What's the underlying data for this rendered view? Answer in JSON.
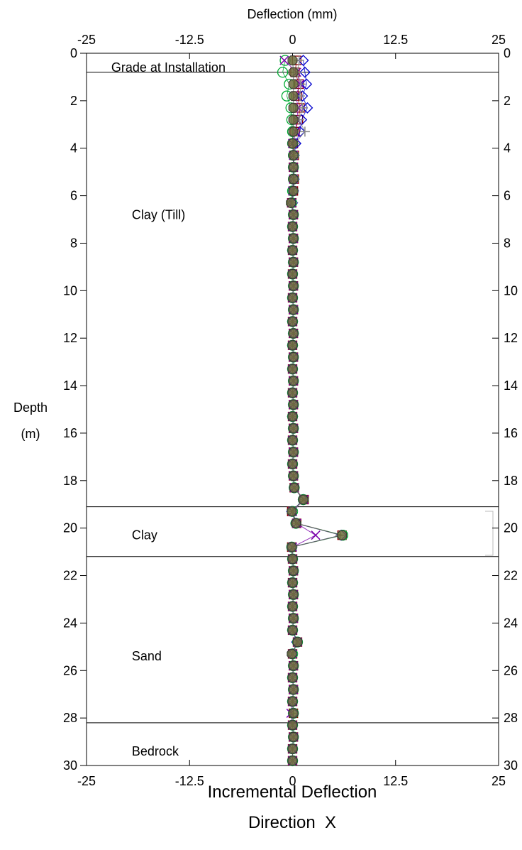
{
  "chart_data": {
    "type": "scatter",
    "title_top": "Deflection (mm)",
    "xlabel": "Incremental Deflection",
    "xlabel2": "Direction  X",
    "ylabel_line1": "Depth",
    "ylabel_line2": "(m)",
    "xlim": [
      -25,
      25
    ],
    "ylim": [
      0,
      30
    ],
    "y_inverted": true,
    "x_ticks": [
      "-25",
      "-12.5",
      "0",
      "12.5",
      "25"
    ],
    "x_tick_values": [
      -25,
      -12.5,
      0,
      12.5,
      25
    ],
    "y_ticks": [
      "0",
      "2",
      "4",
      "6",
      "8",
      "10",
      "12",
      "14",
      "16",
      "18",
      "20",
      "22",
      "24",
      "26",
      "28",
      "30"
    ],
    "y_tick_values": [
      0,
      2,
      4,
      6,
      8,
      10,
      12,
      14,
      16,
      18,
      20,
      22,
      24,
      26,
      28,
      30
    ],
    "grid": false,
    "layer_boundaries": [
      0.8,
      19.1,
      21.2,
      28.2
    ],
    "layer_labels": [
      {
        "text": "Grade at Installation",
        "x": -22,
        "y": 0.6
      },
      {
        "text": "Clay (Till)",
        "x": -19.5,
        "y": 6.8
      },
      {
        "text": "Clay",
        "x": -19.5,
        "y": 20.3
      },
      {
        "text": "Sand",
        "x": -19.5,
        "y": 25.4
      },
      {
        "text": "Bedrock",
        "x": -19.5,
        "y": 29.4
      }
    ],
    "depths": [
      0.3,
      0.8,
      1.3,
      1.8,
      2.3,
      2.8,
      3.3,
      3.8,
      4.3,
      4.8,
      5.3,
      5.8,
      6.3,
      6.8,
      7.3,
      7.8,
      8.3,
      8.8,
      9.3,
      9.8,
      10.3,
      10.8,
      11.3,
      11.8,
      12.3,
      12.8,
      13.3,
      13.8,
      14.3,
      14.8,
      15.3,
      15.8,
      16.3,
      16.8,
      17.3,
      17.8,
      18.3,
      18.8,
      19.3,
      19.8,
      20.3,
      20.8,
      21.3,
      21.8,
      22.3,
      22.8,
      23.3,
      23.8,
      24.3,
      24.8,
      25.3,
      25.8,
      26.3,
      26.8,
      27.3,
      27.8,
      28.3,
      28.8,
      29.3,
      29.8
    ],
    "series": [
      {
        "color": "#8b0000",
        "marker": "square",
        "values": [
          0.5,
          0.3,
          0.8,
          0.6,
          0.9,
          0.7,
          0.3,
          0.1,
          0.2,
          0.1,
          0.2,
          0.1,
          -0.1,
          0.1,
          0.0,
          0.1,
          0.0,
          0.1,
          0.0,
          0.1,
          0.0,
          0.1,
          0.0,
          0.1,
          0.0,
          0.1,
          0.0,
          0.1,
          0.0,
          0.1,
          0.0,
          0.1,
          0.0,
          0.1,
          0.0,
          0.1,
          0.2,
          1.4,
          -0.1,
          0.5,
          6.0,
          -0.1,
          0.0,
          0.1,
          0.0,
          0.1,
          0.0,
          0.1,
          0.0,
          0.6,
          0.0,
          0.1,
          0.0,
          0.1,
          0.0,
          0.1,
          0.0,
          0.1,
          0.0,
          0.0
        ]
      },
      {
        "color": "#0000cc",
        "marker": "diamond",
        "values": [
          1.3,
          1.5,
          1.7,
          1.2,
          1.8,
          1.1,
          0.9,
          0.4,
          0.2,
          0.1,
          0.2,
          0.1,
          0.0,
          0.1,
          0.0,
          0.1,
          0.0,
          0.1,
          0.0,
          0.1,
          0.0,
          0.1,
          0.0,
          0.1,
          0.0,
          0.1,
          0.0,
          0.1,
          0.0,
          0.1,
          0.0,
          0.1,
          0.0,
          0.1,
          0.0,
          0.1,
          0.2,
          1.3,
          -0.1,
          0.4,
          5.9,
          -0.1,
          0.0,
          0.1,
          0.0,
          0.1,
          0.0,
          0.1,
          0.0,
          0.5,
          0.0,
          0.1,
          0.0,
          0.1,
          0.0,
          0.1,
          0.0,
          0.1,
          0.0,
          0.0
        ]
      },
      {
        "color": "#00aa33",
        "marker": "circle",
        "values": [
          -0.9,
          -1.2,
          -0.4,
          -0.7,
          -0.2,
          -0.1,
          0.0,
          0.0,
          0.1,
          0.1,
          0.1,
          0.0,
          -0.1,
          0.1,
          0.0,
          0.1,
          0.0,
          0.1,
          0.0,
          0.1,
          0.0,
          0.1,
          0.0,
          0.1,
          0.0,
          0.1,
          0.0,
          0.1,
          0.0,
          0.1,
          0.0,
          0.1,
          0.0,
          0.1,
          0.0,
          0.1,
          0.2,
          1.3,
          0.0,
          0.4,
          6.1,
          -0.1,
          0.0,
          0.1,
          0.0,
          0.1,
          0.0,
          0.1,
          0.0,
          0.6,
          0.0,
          0.1,
          0.0,
          0.1,
          0.0,
          0.1,
          0.0,
          0.1,
          0.0,
          0.0
        ]
      },
      {
        "color": "#7a00aa",
        "marker": "x",
        "values": [
          -1.0,
          0.5,
          0.9,
          0.4,
          0.7,
          0.5,
          0.4,
          0.0,
          0.1,
          0.1,
          0.1,
          0.0,
          -0.1,
          0.1,
          0.0,
          0.1,
          0.0,
          0.1,
          0.0,
          0.1,
          0.0,
          0.1,
          0.0,
          0.1,
          0.0,
          0.1,
          0.0,
          0.1,
          0.0,
          0.1,
          0.0,
          0.1,
          0.0,
          0.1,
          0.0,
          0.1,
          0.2,
          1.4,
          0.0,
          0.5,
          2.8,
          0.0,
          0.0,
          0.1,
          0.0,
          0.1,
          0.0,
          0.1,
          0.0,
          0.6,
          0.0,
          0.1,
          0.0,
          0.1,
          0.0,
          -0.2,
          0.0,
          0.1,
          0.0,
          0.0
        ]
      },
      {
        "color": "#888888",
        "marker": "plus",
        "values": [
          0.8,
          0.6,
          1.0,
          0.9,
          1.2,
          0.8,
          1.5,
          0.3,
          0.2,
          0.1,
          0.2,
          0.1,
          0.0,
          0.1,
          0.0,
          0.1,
          0.0,
          0.1,
          0.0,
          0.1,
          0.0,
          0.1,
          0.0,
          0.1,
          0.0,
          0.1,
          0.0,
          0.1,
          0.0,
          0.1,
          0.0,
          0.1,
          0.0,
          0.1,
          0.0,
          0.1,
          0.2,
          1.4,
          0.0,
          0.5,
          5.8,
          0.0,
          0.0,
          0.1,
          0.0,
          0.1,
          0.0,
          0.1,
          0.0,
          0.6,
          0.0,
          0.1,
          0.0,
          0.1,
          0.0,
          0.1,
          0.0,
          0.1,
          0.0,
          0.0
        ]
      },
      {
        "color": "#555555",
        "marker": "octagon",
        "values": [
          0.0,
          0.1,
          0.1,
          0.1,
          0.1,
          0.1,
          0.1,
          0.0,
          0.1,
          0.1,
          0.1,
          0.1,
          -0.2,
          0.1,
          0.0,
          0.1,
          0.0,
          0.1,
          0.0,
          0.1,
          0.0,
          0.1,
          0.0,
          0.1,
          0.0,
          0.1,
          0.0,
          0.1,
          0.0,
          0.1,
          0.0,
          0.1,
          0.0,
          0.1,
          0.0,
          0.1,
          0.2,
          1.3,
          -0.1,
          0.4,
          6.0,
          -0.1,
          0.0,
          0.1,
          0.0,
          0.1,
          0.0,
          0.1,
          0.0,
          0.6,
          -0.1,
          0.1,
          0.0,
          0.1,
          0.0,
          0.1,
          0.0,
          0.1,
          0.0,
          0.0
        ]
      }
    ]
  }
}
